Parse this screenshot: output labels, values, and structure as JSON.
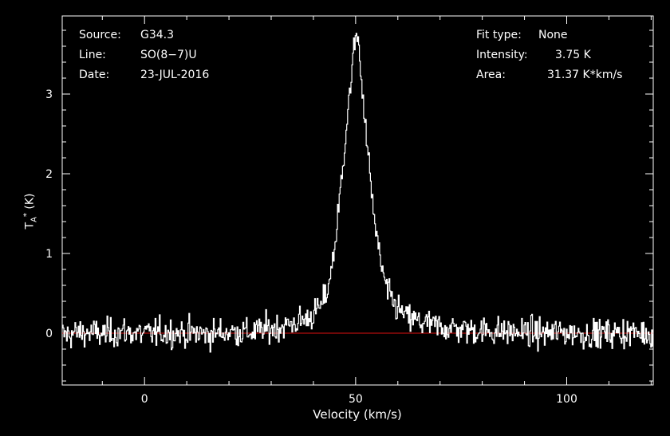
{
  "info": {
    "source_label": "Source:",
    "source_value": "G34.3",
    "line_label": "Line:",
    "line_value": "SO(8−7)U",
    "date_label": "Date:",
    "date_value": "23-JUL-2016",
    "fit_label": "Fit type:",
    "fit_value": "None",
    "intensity_label": "Intensity:",
    "intensity_value": "3.75 K",
    "area_label": "Area:",
    "area_value": "31.37 K*km/s"
  },
  "colors": {
    "background": "#000000",
    "axes": "#ffffff",
    "spectrum": "#ffffff",
    "baseline": "#dd1111"
  },
  "chart_data": {
    "type": "line",
    "xlabel": "Velocity (km/s)",
    "ylabel_main": "T",
    "ylabel_sub": "A",
    "ylabel_sup": "*",
    "ylabel_unit": "(K)",
    "xlim": [
      -19.5,
      120.5
    ],
    "ylim": [
      -0.65,
      3.98
    ],
    "xticks": [
      0,
      50,
      100
    ],
    "yticks": [
      0,
      1,
      2,
      3
    ],
    "grid": false,
    "baseline_y": 0,
    "series": [
      {
        "x": [
          -19,
          -15,
          -10,
          -5,
          0,
          5,
          10,
          15,
          20,
          25,
          28,
          30,
          33,
          35,
          38,
          40,
          42,
          43,
          44,
          45,
          46,
          47,
          48,
          49,
          49.5,
          50,
          50.3,
          50.6,
          51,
          51.5,
          52,
          53,
          54,
          55,
          56,
          57,
          58,
          60,
          62,
          65,
          68,
          70,
          75,
          80,
          85,
          90,
          95,
          100,
          105,
          110,
          115,
          120
        ],
        "y": [
          -0.02,
          0.01,
          -0.01,
          0.02,
          -0.01,
          0.01,
          0.0,
          -0.01,
          0.02,
          0.01,
          0.04,
          0.06,
          0.09,
          0.12,
          0.17,
          0.24,
          0.36,
          0.5,
          0.75,
          1.1,
          1.6,
          2.2,
          2.75,
          3.25,
          3.55,
          3.75,
          3.72,
          3.65,
          3.3,
          3.05,
          2.7,
          2.15,
          1.6,
          1.15,
          0.85,
          0.6,
          0.45,
          0.3,
          0.2,
          0.14,
          0.1,
          0.08,
          0.05,
          0.03,
          0.02,
          0.01,
          0.0,
          0.01,
          -0.01,
          0.0,
          0.01,
          -0.01
        ],
        "noise_rms": 0.12
      }
    ]
  }
}
